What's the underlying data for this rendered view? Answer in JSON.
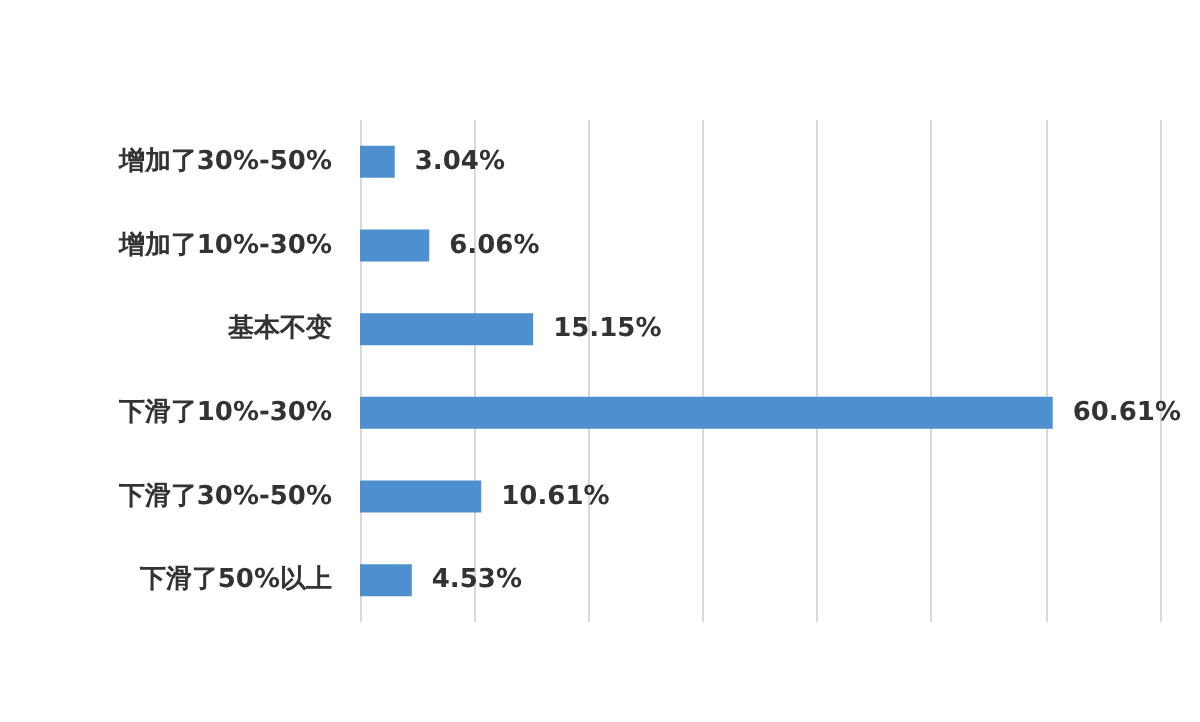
{
  "chart_data": {
    "type": "bar",
    "orientation": "horizontal",
    "categories": [
      "增加了30%-50%",
      "增加了10%-30%",
      "基本不变",
      "下滑了10%-30%",
      "下滑了30%-50%",
      "下滑了50%以上"
    ],
    "values": [
      3.04,
      6.06,
      15.15,
      60.61,
      10.61,
      4.53
    ],
    "value_labels": [
      "3.04%",
      "6.06%",
      "15.15%",
      "60.61%",
      "10.61%",
      "4.53%"
    ],
    "color": "#4e8fcf",
    "xlim": [
      0,
      70
    ],
    "xticks": [
      {
        "value": 0,
        "label": null
      },
      {
        "value": 10,
        "label": null
      },
      {
        "value": 20,
        "label": null
      },
      {
        "value": 30,
        "label": null
      },
      {
        "value": 40,
        "label": null
      },
      {
        "value": 50,
        "label": null
      },
      {
        "value": 60,
        "label": null
      },
      {
        "value": 70,
        "label": null
      }
    ],
    "grid": "x",
    "tick_labels": "y"
  }
}
